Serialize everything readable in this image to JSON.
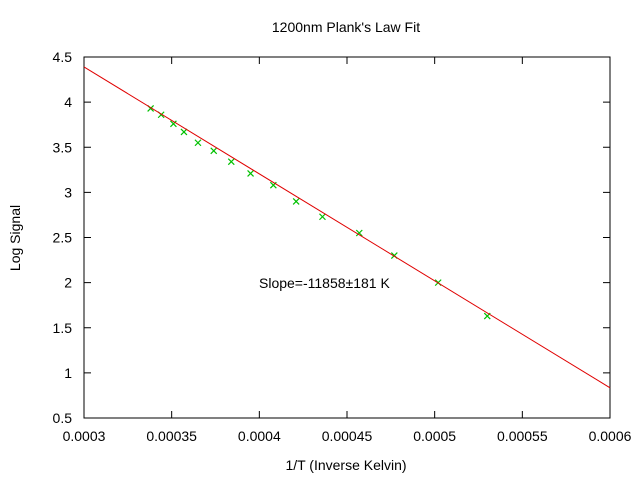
{
  "chart_data": {
    "type": "scatter",
    "title": "1200nm Plank's Law Fit",
    "xlabel": "1/T (Inverse Kelvin)",
    "ylabel": "Log Signal",
    "xlim": [
      0.0003,
      0.0006
    ],
    "ylim": [
      0.5,
      4.5
    ],
    "grid": false,
    "x_ticks": [
      "0.0003",
      "0.00035",
      "0.0004",
      "0.00045",
      "0.0005",
      "0.00055",
      "0.0006"
    ],
    "y_ticks": [
      "0.5",
      "1",
      "1.5",
      "2",
      "2.5",
      "3",
      "3.5",
      "4",
      "4.5"
    ],
    "annotation": "Slope=-11858±181 K",
    "series": [
      {
        "type": "scatter",
        "marker": "x",
        "color": "#00c000",
        "x": [
          0.000338,
          0.000344,
          0.000351,
          0.000357,
          0.000365,
          0.000374,
          0.000384,
          0.000395,
          0.000408,
          0.000421,
          0.000436,
          0.000457,
          0.000477,
          0.000502,
          0.00053
        ],
        "y": [
          3.93,
          3.86,
          3.76,
          3.67,
          3.55,
          3.46,
          3.34,
          3.21,
          3.08,
          2.9,
          2.73,
          2.55,
          2.3,
          2.0,
          1.63
        ]
      },
      {
        "type": "line",
        "color": "#e00000",
        "x": [
          0.0003,
          0.0006
        ],
        "y": [
          4.39,
          0.835
        ]
      }
    ]
  }
}
